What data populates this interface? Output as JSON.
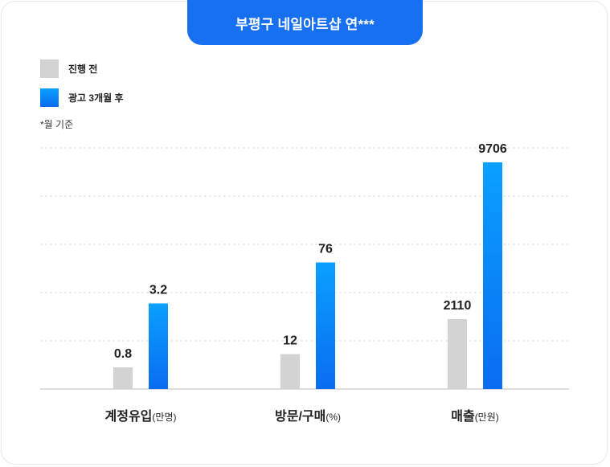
{
  "title": "부평구 네일아트샵 연***",
  "legend": {
    "before": "진행 전",
    "after": "광고 3개월 후"
  },
  "note": "*월 기준",
  "colors": {
    "title_bg": "#1670f0",
    "before": "#d3d3d3",
    "after_top": "#0aa0ff",
    "after_bottom": "#0a6cf0",
    "grid": "#dddddd"
  },
  "chart_data": {
    "type": "bar",
    "grid": true,
    "series": [
      {
        "name": "진행 전",
        "values": [
          0.8,
          12,
          2110
        ]
      },
      {
        "name": "광고 3개월 후",
        "values": [
          3.2,
          76,
          9706
        ]
      }
    ],
    "categories": [
      {
        "label": "계정유입",
        "unit": "(만명)"
      },
      {
        "label": "방문/구매",
        "unit": "(%)"
      },
      {
        "label": "매출",
        "unit": "(만원)"
      }
    ],
    "value_labels": [
      [
        "0.8",
        "3.2"
      ],
      [
        "12",
        "76"
      ],
      [
        "2110",
        "9706"
      ]
    ],
    "visual_levels": [
      {
        "before": 0.09,
        "after": 0.355
      },
      {
        "before": 0.145,
        "after": 0.525
      },
      {
        "before": 0.29,
        "after": 0.94
      }
    ]
  }
}
